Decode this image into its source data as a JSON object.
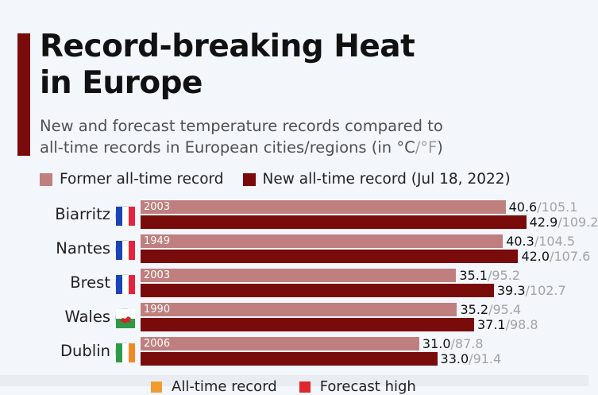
{
  "header": {
    "title_line1": "Record-breaking Heat",
    "title_line2": "in Europe",
    "subtitle_line1": "New and forecast temperature records compared to",
    "subtitle_line2_a": "all-time records in European cities/regions (in °C",
    "subtitle_sep": "/°F",
    "subtitle_line2_b": ")"
  },
  "colors": {
    "accent": "#7a0b0b",
    "former": "#c07f7f",
    "new": "#7a0b0b",
    "bottom_all_time": "#f29b30",
    "bottom_forecast": "#e0262f"
  },
  "chart_data": {
    "type": "bar",
    "orientation": "horizontal",
    "unit": "°C",
    "xlim": [
      0,
      45
    ],
    "legend": [
      "Former all-time record",
      "New all-time record (Jul 18, 2022)"
    ],
    "legend_placement": "top",
    "categories": [
      "Biarritz",
      "Nantes",
      "Brest",
      "Wales",
      "Dublin"
    ],
    "flags": [
      "france-flag-icon",
      "france-flag-icon",
      "france-flag-icon",
      "wales-flag-icon",
      "ireland-flag-icon"
    ],
    "years": [
      "2003",
      "1949",
      "2003",
      "1990",
      "2006"
    ],
    "series": [
      {
        "name": "Former all-time record",
        "values": [
          40.6,
          40.3,
          35.1,
          35.2,
          31.0
        ],
        "labels_c": [
          "40.6",
          "40.3",
          "35.1",
          "35.2",
          "31.0"
        ],
        "labels_f": [
          "/105.1",
          "/104.5",
          "/95.2",
          "/95.4",
          "/87.8"
        ]
      },
      {
        "name": "New all-time record (Jul 18, 2022)",
        "values": [
          42.9,
          42.0,
          39.3,
          37.1,
          33.0
        ],
        "labels_c": [
          "42.9",
          "42.0",
          "39.3",
          "37.1",
          "33.0"
        ],
        "labels_f": [
          "/109.2",
          "/107.6",
          "/102.7",
          "/98.8",
          "/91.4"
        ]
      }
    ],
    "bottom_legend": [
      "All-time record",
      "Forecast high"
    ]
  }
}
